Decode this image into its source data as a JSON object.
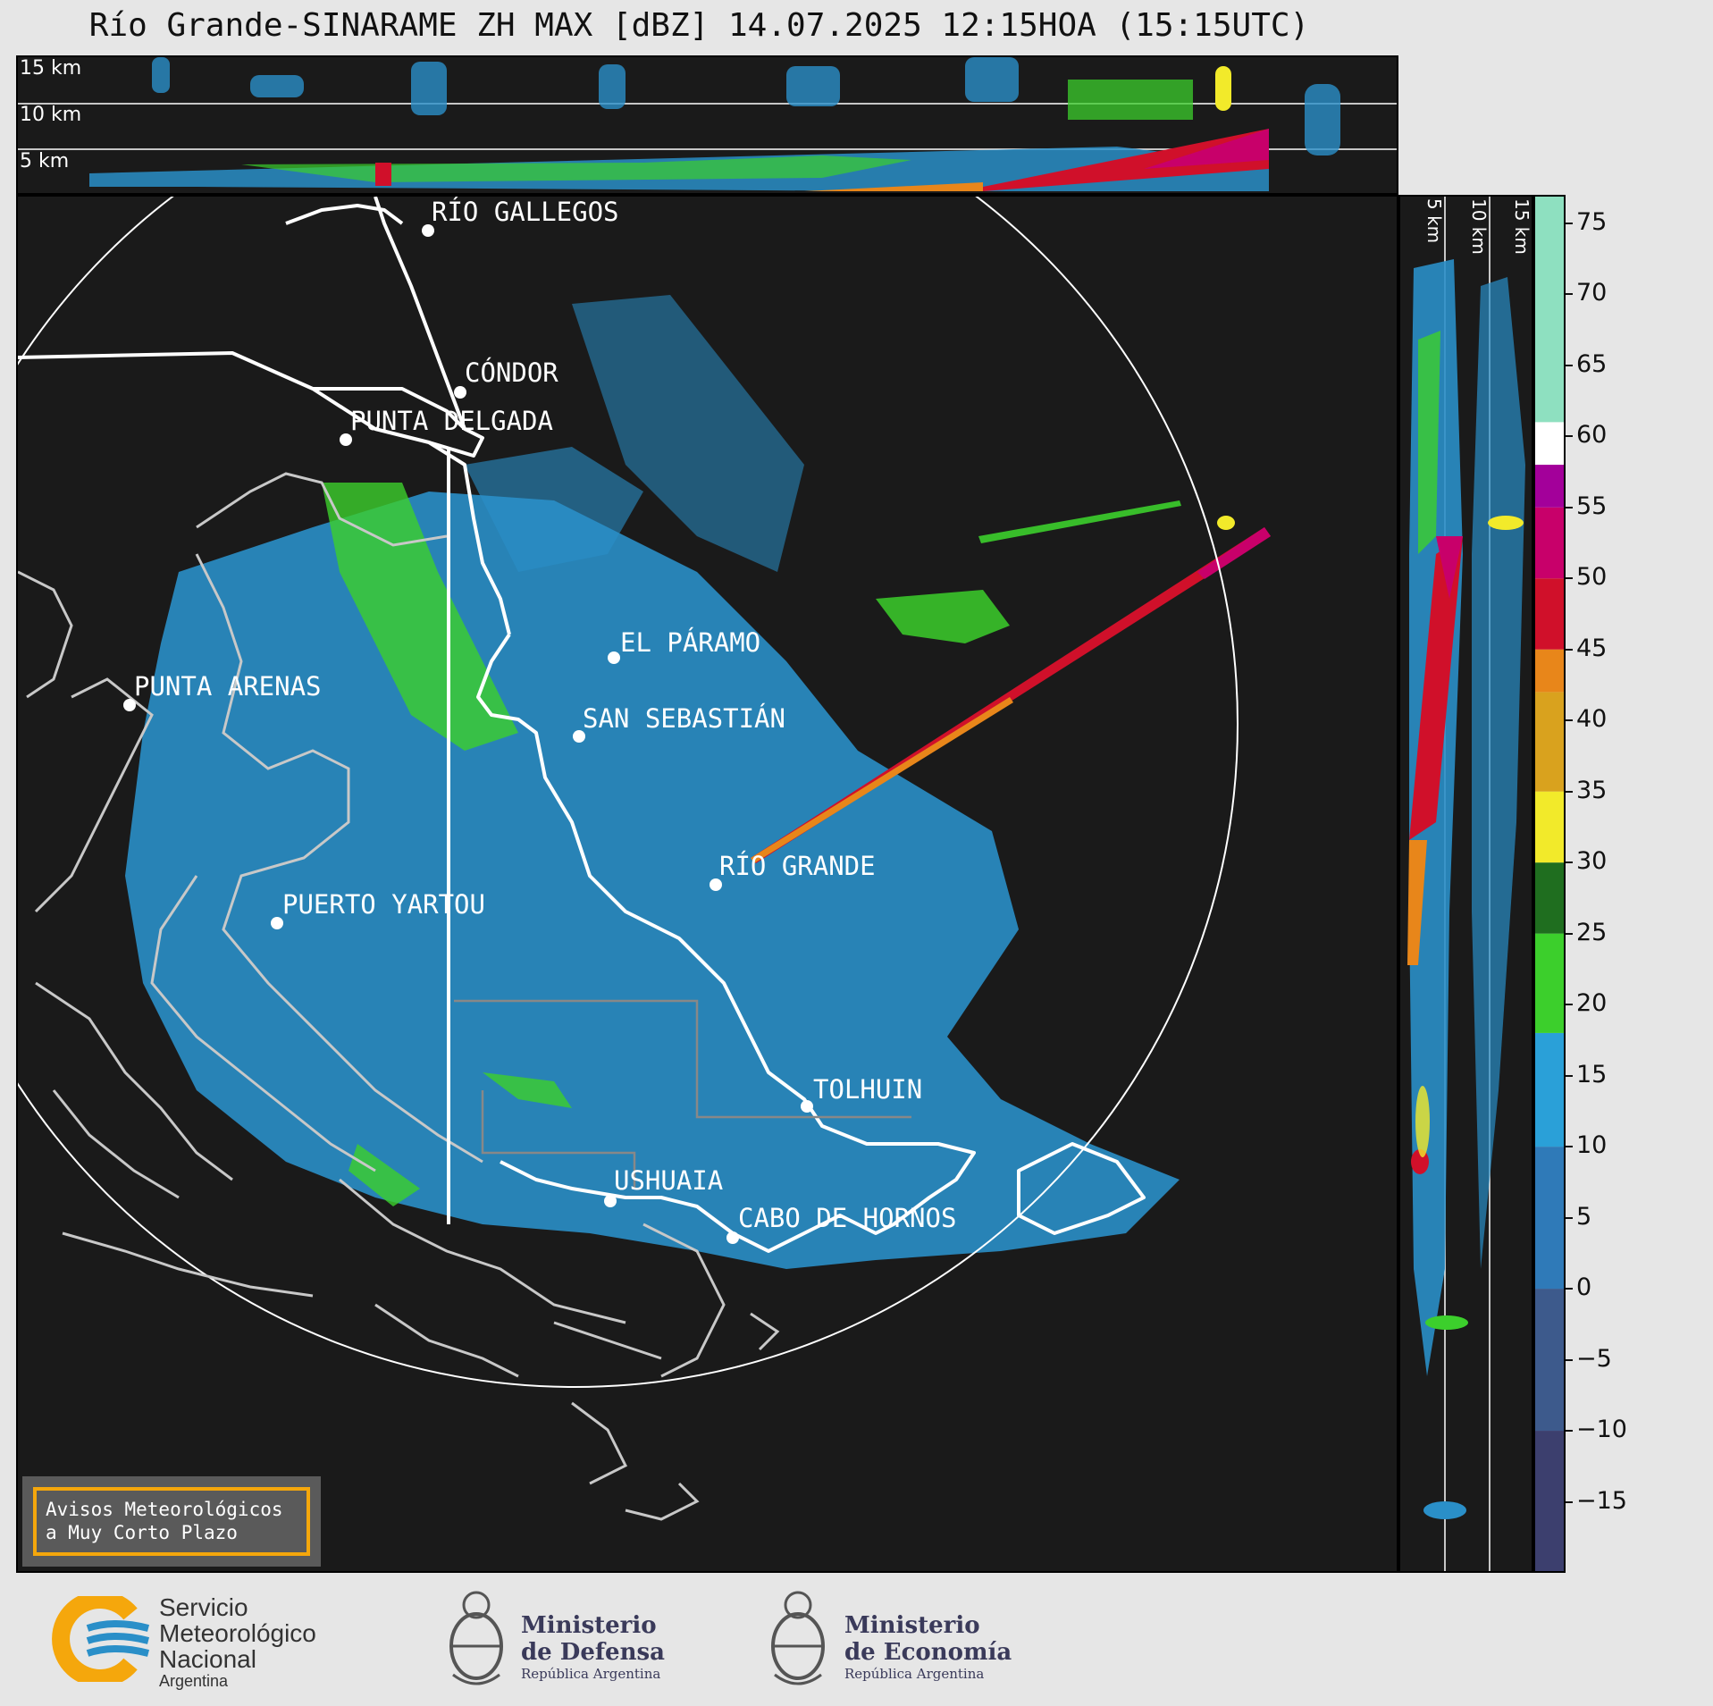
{
  "header": {
    "title": "Río Grande-SINARAME ZH MAX [dBZ] 14.07.2025 12:15HOA (15:15UTC)"
  },
  "top_panel": {
    "height_labels": [
      "15 km",
      "10 km",
      "5 km"
    ]
  },
  "side_panel": {
    "height_labels": [
      "5 km",
      "10 km",
      "15 km"
    ]
  },
  "map": {
    "places": [
      {
        "name": "RÍO GALLEGOS"
      },
      {
        "name": "CÓNDOR"
      },
      {
        "name": "PUNTA DELGADA"
      },
      {
        "name": "EL PÁRAMO"
      },
      {
        "name": "SAN SEBASTIÁN"
      },
      {
        "name": "PUNTA ARENAS"
      },
      {
        "name": "RÍO GRANDE"
      },
      {
        "name": "PUERTO YARTOU"
      },
      {
        "name": "TOLHUIN"
      },
      {
        "name": "USHUAIA"
      },
      {
        "name": "CABO DE HORNOS"
      }
    ]
  },
  "notice": {
    "line1": "Avisos Meteorológicos",
    "line2": "a Muy Corto Plazo"
  },
  "colorbar": {
    "unit": "dBZ",
    "ticks": [
      "75",
      "70",
      "65",
      "60",
      "55",
      "50",
      "45",
      "40",
      "35",
      "30",
      "25",
      "20",
      "15",
      "10",
      "5",
      "0",
      "−5",
      "−10",
      "−15"
    ],
    "range": [
      -20,
      77
    ],
    "stops": [
      {
        "from": -20,
        "to": -10,
        "color": "#3c3f6e"
      },
      {
        "from": -10,
        "to": 0,
        "color": "#3d5a8c"
      },
      {
        "from": 0,
        "to": 10,
        "color": "#2f7ab8"
      },
      {
        "from": 10,
        "to": 18,
        "color": "#2aa0d8"
      },
      {
        "from": 18,
        "to": 25,
        "color": "#3ccf2c"
      },
      {
        "from": 25,
        "to": 30,
        "color": "#1f6e1f"
      },
      {
        "from": 30,
        "to": 35,
        "color": "#f2ea2a"
      },
      {
        "from": 35,
        "to": 42,
        "color": "#d9a21e"
      },
      {
        "from": 42,
        "to": 45,
        "color": "#e8861a"
      },
      {
        "from": 45,
        "to": 50,
        "color": "#d0102a"
      },
      {
        "from": 50,
        "to": 55,
        "color": "#c8006a"
      },
      {
        "from": 55,
        "to": 58,
        "color": "#a3009a"
      },
      {
        "from": 58,
        "to": 61,
        "color": "#ffffff"
      },
      {
        "from": 61,
        "to": 77,
        "color": "#8ee0c0"
      }
    ]
  },
  "footer": {
    "smn": {
      "line1": "Servicio",
      "line2": "Meteorológico",
      "line3": "Nacional",
      "line4": "Argentina"
    },
    "defensa": {
      "line1": "Ministerio",
      "line2": "de Defensa",
      "line3": "República Argentina"
    },
    "economia": {
      "line1": "Ministerio",
      "line2": "de Economía",
      "line3": "República Argentina"
    }
  },
  "colors": {
    "background": "#e6e6e6",
    "panel": "#1a1a1a",
    "accent": "#f5a70c",
    "coast": "#ffffff",
    "coast_secondary": "#c8c8c8"
  }
}
